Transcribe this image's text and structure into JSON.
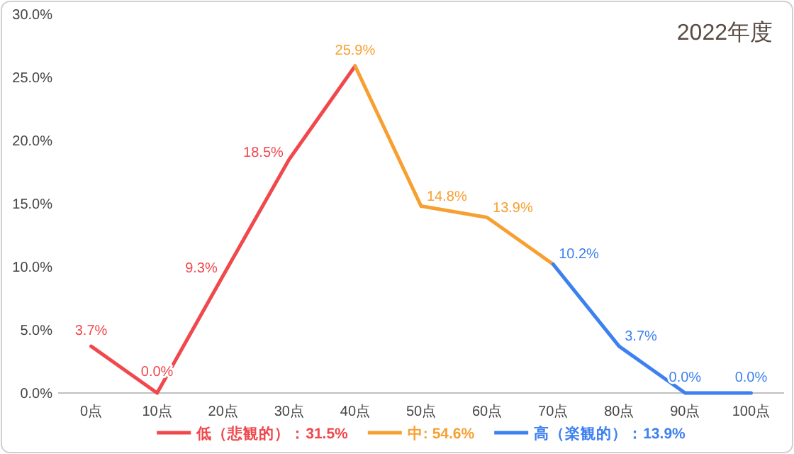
{
  "chart_data": {
    "type": "line",
    "title": "2022年度",
    "categories": [
      "0点",
      "10点",
      "20点",
      "30点",
      "40点",
      "50点",
      "60点",
      "70点",
      "80点",
      "90点",
      "100点"
    ],
    "series": [
      {
        "name": "低（悲観的）：31.5%",
        "color": "#f0484c",
        "values": [
          3.7,
          0.0,
          9.3,
          18.5,
          25.9,
          null,
          null,
          null,
          null,
          null,
          null
        ],
        "value_labels": [
          "3.7%",
          "0.0%",
          "9.3%",
          "18.5%",
          null,
          null,
          null,
          null,
          null,
          null,
          null
        ]
      },
      {
        "name": "中: 54.6%",
        "color": "#f7a032",
        "values": [
          null,
          null,
          null,
          null,
          25.9,
          14.8,
          13.9,
          10.2,
          null,
          null,
          null
        ],
        "value_labels": [
          null,
          null,
          null,
          null,
          "25.9%",
          "14.8%",
          "13.9%",
          null,
          null,
          null,
          null
        ]
      },
      {
        "name": "高（楽観的）：13.9%",
        "color": "#3d80f0",
        "values": [
          null,
          null,
          null,
          null,
          null,
          null,
          null,
          10.2,
          3.7,
          0.0,
          0.0
        ],
        "value_labels": [
          null,
          null,
          null,
          null,
          null,
          null,
          null,
          "10.2%",
          "3.7%",
          "0.0%",
          "0.0%"
        ]
      }
    ],
    "ylim": [
      0,
      30
    ],
    "yticks": [
      {
        "value": 0,
        "label": "0.0%"
      },
      {
        "value": 5,
        "label": "5.0%"
      },
      {
        "value": 10,
        "label": "10.0%"
      },
      {
        "value": 15,
        "label": "15.0%"
      },
      {
        "value": 20,
        "label": "20.0%"
      },
      {
        "value": 25,
        "label": "25.0%"
      },
      {
        "value": 30,
        "label": "30.0%"
      }
    ],
    "legend": "bottom",
    "grid": false,
    "marker": "none",
    "line_style": "solid"
  }
}
